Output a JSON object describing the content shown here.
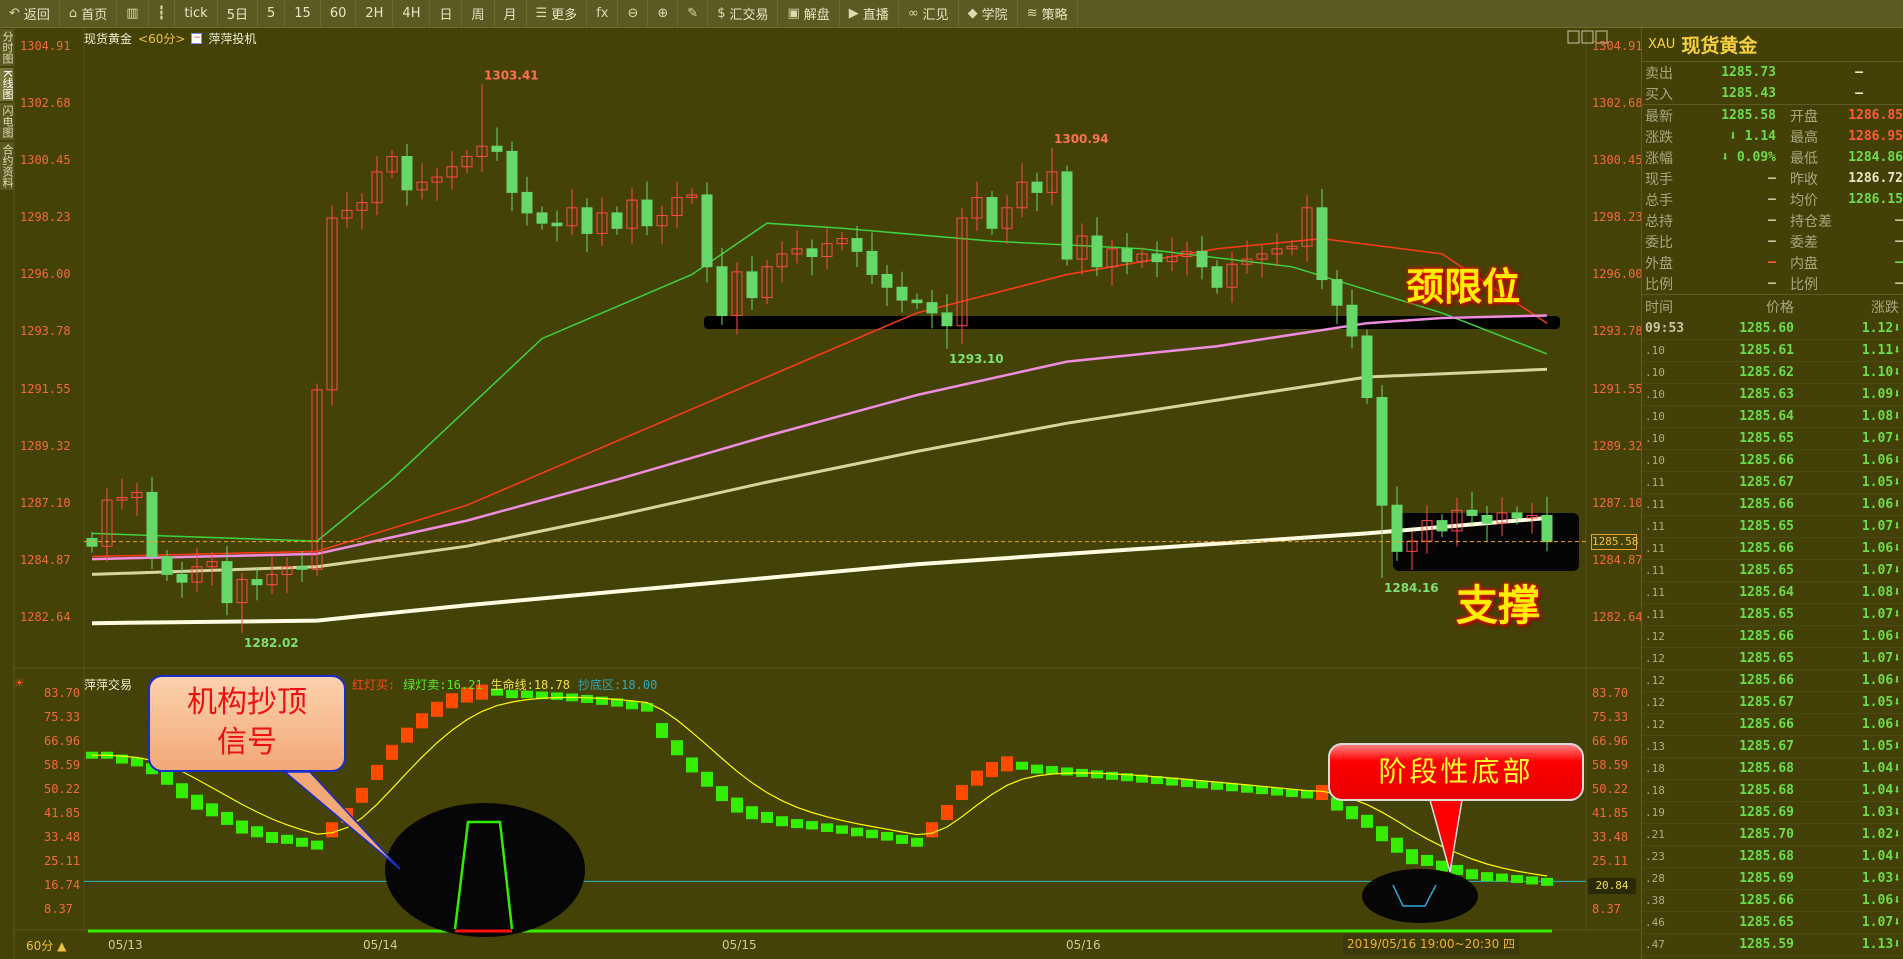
{
  "toolbar": {
    "items": [
      {
        "label": "返回",
        "icon": "back-arrow-icon",
        "glyph": "↶"
      },
      {
        "label": "首页",
        "icon": "home-icon",
        "glyph": "⌂"
      },
      {
        "label": "",
        "icon": "bar-chart-icon",
        "glyph": "▥"
      },
      {
        "label": "",
        "icon": "candlestick-icon",
        "glyph": "┇"
      },
      {
        "label": "tick",
        "icon": "",
        "glyph": ""
      },
      {
        "label": "5日",
        "icon": "",
        "glyph": ""
      },
      {
        "label": "5",
        "icon": "",
        "glyph": ""
      },
      {
        "label": "15",
        "icon": "",
        "glyph": ""
      },
      {
        "label": "60",
        "icon": "",
        "glyph": ""
      },
      {
        "label": "2H",
        "icon": "",
        "glyph": ""
      },
      {
        "label": "4H",
        "icon": "",
        "glyph": ""
      },
      {
        "label": "日",
        "icon": "",
        "glyph": ""
      },
      {
        "label": "周",
        "icon": "",
        "glyph": ""
      },
      {
        "label": "月",
        "icon": "",
        "glyph": ""
      },
      {
        "label": "更多",
        "icon": "list-icon",
        "glyph": "☰"
      },
      {
        "label": "",
        "icon": "fx-icon",
        "glyph": "fx"
      },
      {
        "label": "",
        "icon": "zoom-out-icon",
        "glyph": "⊖"
      },
      {
        "label": "",
        "icon": "zoom-in-icon",
        "glyph": "⊕"
      },
      {
        "label": "",
        "icon": "pencil-icon",
        "glyph": "✎"
      },
      {
        "label": "汇交易",
        "icon": "dollar-icon",
        "glyph": "$"
      },
      {
        "label": "解盘",
        "icon": "chat-icon",
        "glyph": "▣"
      },
      {
        "label": "直播",
        "icon": "play-icon",
        "glyph": "▶"
      },
      {
        "label": "汇见",
        "icon": "link-icon",
        "glyph": "∞"
      },
      {
        "label": "学院",
        "icon": "graduation-icon",
        "glyph": "◆"
      },
      {
        "label": "策略",
        "icon": "layers-icon",
        "glyph": "≋"
      }
    ]
  },
  "side_tabs": [
    {
      "label": "分时图",
      "active": false
    },
    {
      "label": "K线图",
      "active": true
    },
    {
      "label": "闪电图",
      "active": false
    },
    {
      "label": "合约资料",
      "active": false
    }
  ],
  "chart": {
    "symbol": "现货黄金",
    "period": "<60分>",
    "indicator_name": "萍萍投机",
    "price_axis": [
      "1304.91",
      "1302.68",
      "1300.45",
      "1298.23",
      "1296.00",
      "1293.78",
      "1291.55",
      "1289.32",
      "1287.10",
      "1284.87",
      "1282.64"
    ],
    "current_price": "1285.58",
    "colors": {
      "up": "#ff4848",
      "down": "#66d86a",
      "bg": "#444207"
    },
    "closes": [
      1285.4,
      1287.2,
      1287.3,
      1287.5,
      1285.0,
      1284.3,
      1284.0,
      1284.6,
      1284.8,
      1283.2,
      1284.1,
      1283.9,
      1284.3,
      1284.6,
      1284.5,
      1291.5,
      1298.2,
      1298.5,
      1298.8,
      1300.0,
      1300.6,
      1299.3,
      1299.6,
      1299.8,
      1300.2,
      1300.6,
      1301.0,
      1300.8,
      1299.2,
      1298.4,
      1298.0,
      1297.9,
      1298.6,
      1297.6,
      1298.4,
      1297.8,
      1298.9,
      1297.9,
      1298.3,
      1299.0,
      1299.1,
      1296.3,
      1294.4,
      1296.1,
      1295.1,
      1296.3,
      1296.8,
      1297.0,
      1296.7,
      1297.2,
      1297.4,
      1296.9,
      1296.0,
      1295.5,
      1295.0,
      1294.9,
      1294.5,
      1294.0,
      1298.2,
      1299.0,
      1297.8,
      1298.6,
      1299.6,
      1299.2,
      1300.0,
      1296.6,
      1297.5,
      1296.3,
      1297.0,
      1296.5,
      1296.8,
      1296.5,
      1296.7,
      1296.9,
      1296.3,
      1295.5,
      1296.4,
      1296.6,
      1296.8,
      1297.0,
      1297.1,
      1298.6,
      1295.8,
      1294.8,
      1293.6,
      1291.2,
      1287.0,
      1285.2,
      1285.6,
      1286.4,
      1286.0,
      1286.8,
      1286.6,
      1286.3,
      1286.7,
      1286.5,
      1286.6,
      1285.58
    ],
    "extremes": [
      {
        "index": 26,
        "type": "high",
        "value": "1303.41"
      },
      {
        "index": 10,
        "type": "low",
        "value": "1282.02"
      },
      {
        "index": 57,
        "type": "low",
        "value": "1293.10"
      },
      {
        "index": 64,
        "type": "high",
        "value": "1300.94"
      },
      {
        "index": 86,
        "type": "low",
        "value": "1284.16"
      }
    ],
    "moving_averages": [
      {
        "color": "#3fd23f",
        "points": [
          [
            0,
            1285.9
          ],
          [
            15,
            1285.6
          ],
          [
            20,
            1288
          ],
          [
            30,
            1293.5
          ],
          [
            40,
            1296
          ],
          [
            45,
            1298
          ],
          [
            50,
            1297.8
          ],
          [
            60,
            1297.3
          ],
          [
            70,
            1297.0
          ],
          [
            80,
            1296.3
          ],
          [
            90,
            1294.5
          ],
          [
            97,
            1292.9
          ]
        ]
      },
      {
        "color": "#ff3a1a",
        "points": [
          [
            0,
            1285.0
          ],
          [
            15,
            1285.2
          ],
          [
            25,
            1287
          ],
          [
            35,
            1289.5
          ],
          [
            45,
            1292
          ],
          [
            55,
            1294.5
          ],
          [
            65,
            1296
          ],
          [
            75,
            1297
          ],
          [
            82,
            1297.4
          ],
          [
            90,
            1296.8
          ],
          [
            97,
            1294.1
          ]
        ]
      },
      {
        "color": "#f08ce0",
        "points": [
          [
            0,
            1284.9
          ],
          [
            15,
            1285.1
          ],
          [
            25,
            1286.4
          ],
          [
            35,
            1288
          ],
          [
            45,
            1289.7
          ],
          [
            55,
            1291.3
          ],
          [
            65,
            1292.6
          ],
          [
            75,
            1293.2
          ],
          [
            85,
            1294.1
          ],
          [
            90,
            1294.3
          ],
          [
            97,
            1294.4
          ]
        ]
      },
      {
        "color": "#d8d4a0",
        "points": [
          [
            0,
            1284.3
          ],
          [
            15,
            1284.6
          ],
          [
            25,
            1285.4
          ],
          [
            35,
            1286.6
          ],
          [
            45,
            1287.9
          ],
          [
            55,
            1289.1
          ],
          [
            65,
            1290.2
          ],
          [
            75,
            1291.1
          ],
          [
            85,
            1292
          ],
          [
            97,
            1292.3
          ]
        ]
      },
      {
        "color": "#fffbe0",
        "points": [
          [
            0,
            1282.4
          ],
          [
            15,
            1282.5
          ],
          [
            25,
            1283.1
          ],
          [
            40,
            1283.9
          ],
          [
            55,
            1284.7
          ],
          [
            70,
            1285.3
          ],
          [
            85,
            1285.9
          ],
          [
            97,
            1286.5
          ]
        ]
      }
    ],
    "annotations": {
      "neckline": "颈限位",
      "support": "支撑"
    }
  },
  "indicator": {
    "name": "萍萍交易",
    "red_buy": "红灯买:",
    "green_sell": "绿灯卖:16.21",
    "lifeline": "生命线:18.78",
    "bottom_zone": "抄底区:18.00",
    "axis": [
      "83.70",
      "75.33",
      "66.96",
      "58.59",
      "50.22",
      "41.85",
      "33.48",
      "25.11",
      "16.74",
      "8.37"
    ],
    "value_label": "20.84",
    "bottom_zone_value": 18.0,
    "bars": [
      62,
      62,
      61,
      60,
      58,
      55,
      51,
      47,
      44,
      41,
      38,
      36,
      34,
      33,
      32,
      31,
      36,
      41,
      48,
      56,
      63,
      69,
      74,
      78,
      81,
      83,
      84,
      84,
      83.5,
      83.3,
      83,
      82.7,
      82.3,
      81.8,
      81.2,
      80.6,
      79.8,
      79,
      72,
      66,
      60,
      55,
      50,
      46,
      43,
      41,
      39.5,
      38.5,
      37.8,
      37,
      36.3,
      35.5,
      34.8,
      34,
      33,
      32,
      36,
      42,
      49,
      54,
      57,
      59,
      58.5,
      57.5,
      57,
      56.5,
      56,
      55.5,
      55,
      54.5,
      54,
      53.5,
      53,
      52.5,
      52,
      51.5,
      51,
      50.5,
      50,
      49.5,
      49,
      48.5,
      49,
      46,
      43,
      40,
      36,
      32,
      28,
      26,
      24,
      22.5,
      21,
      20,
      19.5,
      19,
      18.5,
      18
    ],
    "colors": {
      "up": "#ff4a00",
      "down": "#33ee00",
      "line": "#ffff00",
      "zone": "#30b0c0"
    },
    "callout_top": "机构抄顶信号",
    "callout_bottom": "阶段性底部"
  },
  "x_axis": {
    "dates": [
      "05/13",
      "05/14",
      "05/15",
      "05/16"
    ],
    "cursor_time": "2019/05/16 19:00~20:30 四",
    "period_button": "60分 ▲"
  },
  "quote": {
    "code": "XAU",
    "name": "现货黄金",
    "bid_ask": [
      {
        "label": "卖出",
        "value": "1285.73",
        "vol": "—"
      },
      {
        "label": "买入",
        "value": "1285.43",
        "vol": "—"
      }
    ],
    "rows": [
      {
        "l1": "最新",
        "v1": "1285.58",
        "c1": "g",
        "l2": "开盘",
        "v2": "1286.85",
        "c2": "r"
      },
      {
        "l1": "涨跌",
        "v1": "⬇ 1.14",
        "c1": "g",
        "l2": "最高",
        "v2": "1286.95",
        "c2": "r"
      },
      {
        "l1": "涨幅",
        "v1": "⬇ 0.09%",
        "c1": "g",
        "l2": "最低",
        "v2": "1284.86",
        "c2": "g"
      },
      {
        "l1": "现手",
        "v1": "—",
        "c1": "d",
        "l2": "昨收",
        "v2": "1286.72",
        "c2": "w"
      },
      {
        "l1": "总手",
        "v1": "—",
        "c1": "d",
        "l2": "均价",
        "v2": "1286.15",
        "c2": "g"
      },
      {
        "l1": "总持",
        "v1": "—",
        "c1": "d",
        "l2": "持仓差",
        "v2": "—",
        "c2": "d"
      },
      {
        "l1": "委比",
        "v1": "—",
        "c1": "d",
        "l2": "委差",
        "v2": "—",
        "c2": "d"
      },
      {
        "l1": "外盘",
        "v1": "—",
        "c1": "r",
        "l2": "内盘",
        "v2": "—",
        "c2": "g"
      },
      {
        "l1": "比例",
        "v1": "—",
        "c1": "d",
        "l2": "比例",
        "v2": "—",
        "c2": "d"
      }
    ],
    "tick_headers": [
      "时间",
      "价格",
      "涨跌"
    ],
    "ticks": [
      [
        "09:53",
        "1285.60",
        "1.12"
      ],
      [
        ".10",
        "1285.61",
        "1.11"
      ],
      [
        ".10",
        "1285.62",
        "1.10"
      ],
      [
        ".10",
        "1285.63",
        "1.09"
      ],
      [
        ".10",
        "1285.64",
        "1.08"
      ],
      [
        ".10",
        "1285.65",
        "1.07"
      ],
      [
        ".10",
        "1285.66",
        "1.06"
      ],
      [
        ".11",
        "1285.67",
        "1.05"
      ],
      [
        ".11",
        "1285.66",
        "1.06"
      ],
      [
        ".11",
        "1285.65",
        "1.07"
      ],
      [
        ".11",
        "1285.66",
        "1.06"
      ],
      [
        ".11",
        "1285.65",
        "1.07"
      ],
      [
        ".11",
        "1285.64",
        "1.08"
      ],
      [
        ".11",
        "1285.65",
        "1.07"
      ],
      [
        ".12",
        "1285.66",
        "1.06"
      ],
      [
        ".12",
        "1285.65",
        "1.07"
      ],
      [
        ".12",
        "1285.66",
        "1.06"
      ],
      [
        ".12",
        "1285.67",
        "1.05"
      ],
      [
        ".12",
        "1285.66",
        "1.06"
      ],
      [
        ".13",
        "1285.67",
        "1.05"
      ],
      [
        ".18",
        "1285.68",
        "1.04"
      ],
      [
        ".18",
        "1285.68",
        "1.04"
      ],
      [
        ".19",
        "1285.69",
        "1.03"
      ],
      [
        ".21",
        "1285.70",
        "1.02"
      ],
      [
        ".23",
        "1285.68",
        "1.04"
      ],
      [
        ".28",
        "1285.69",
        "1.03"
      ],
      [
        ".38",
        "1285.66",
        "1.06"
      ],
      [
        ".46",
        "1285.65",
        "1.07"
      ],
      [
        ".47",
        "1285.59",
        "1.13"
      ]
    ],
    "down_arrow": "⬇"
  }
}
